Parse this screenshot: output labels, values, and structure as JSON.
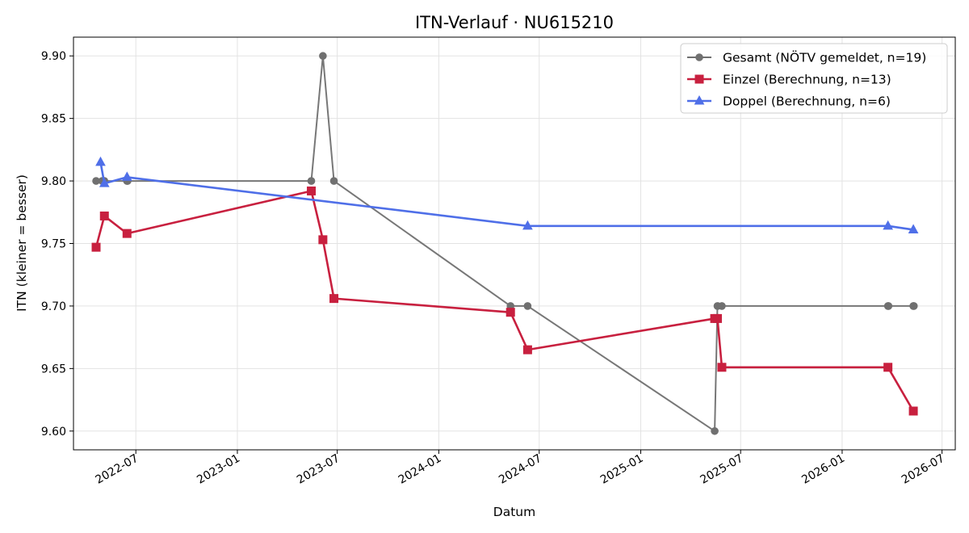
{
  "chart_data": {
    "type": "line",
    "title": "ITN-Verlauf · NU615210",
    "xlabel": "Datum",
    "ylabel": "ITN  (kleiner = besser)",
    "x_ticks": [
      "2022-07",
      "2023-01",
      "2023-07",
      "2024-01",
      "2024-07",
      "2025-01",
      "2025-07",
      "2026-01",
      "2026-07"
    ],
    "y_ticks": [
      "9.60",
      "9.65",
      "9.70",
      "9.75",
      "9.80",
      "9.85",
      "9.90"
    ],
    "xlim": [
      "2022-03-10",
      "2026-07-25"
    ],
    "ylim": [
      9.585,
      9.915
    ],
    "grid": true,
    "legend_position": "top-right",
    "series": [
      {
        "name": "Gesamt (NÖTV gemeldet, n=19)",
        "color": "#707070",
        "marker": "circle",
        "points": [
          {
            "x": "2022-04-20",
            "y": 9.8
          },
          {
            "x": "2022-05-01",
            "y": 9.8
          },
          {
            "x": "2022-05-05",
            "y": 9.8
          },
          {
            "x": "2022-06-15",
            "y": 9.8
          },
          {
            "x": "2022-06-16",
            "y": 9.8
          },
          {
            "x": "2023-05-15",
            "y": 9.8
          },
          {
            "x": "2023-06-05",
            "y": 9.9
          },
          {
            "x": "2023-06-25",
            "y": 9.8
          },
          {
            "x": "2024-05-10",
            "y": 9.7
          },
          {
            "x": "2024-06-10",
            "y": 9.7
          },
          {
            "x": "2025-05-15",
            "y": 9.6
          },
          {
            "x": "2025-05-20",
            "y": 9.7
          },
          {
            "x": "2025-05-28",
            "y": 9.7
          },
          {
            "x": "2026-03-25",
            "y": 9.7
          },
          {
            "x": "2026-03-26",
            "y": 9.7
          },
          {
            "x": "2026-05-10",
            "y": 9.7
          },
          {
            "x": "2026-05-11",
            "y": 9.7
          }
        ]
      },
      {
        "name": "Einzel (Berechnung, n=13)",
        "color": "#c8203f",
        "marker": "square",
        "points": [
          {
            "x": "2022-04-20",
            "y": 9.747
          },
          {
            "x": "2022-05-05",
            "y": 9.772
          },
          {
            "x": "2022-06-15",
            "y": 9.758
          },
          {
            "x": "2023-05-15",
            "y": 9.792
          },
          {
            "x": "2023-06-05",
            "y": 9.753
          },
          {
            "x": "2023-06-25",
            "y": 9.706
          },
          {
            "x": "2024-05-10",
            "y": 9.695
          },
          {
            "x": "2024-06-10",
            "y": 9.665
          },
          {
            "x": "2025-05-15",
            "y": 9.69
          },
          {
            "x": "2025-05-20",
            "y": 9.69
          },
          {
            "x": "2025-05-28",
            "y": 9.651
          },
          {
            "x": "2026-03-25",
            "y": 9.651
          },
          {
            "x": "2026-05-10",
            "y": 9.616
          }
        ]
      },
      {
        "name": "Doppel (Berechnung, n=6)",
        "color": "#4f6fe8",
        "marker": "triangle",
        "points": [
          {
            "x": "2022-04-28",
            "y": 9.815
          },
          {
            "x": "2022-05-05",
            "y": 9.798
          },
          {
            "x": "2022-06-15",
            "y": 9.803
          },
          {
            "x": "2024-06-10",
            "y": 9.764
          },
          {
            "x": "2026-03-25",
            "y": 9.764
          },
          {
            "x": "2026-05-10",
            "y": 9.761
          }
        ]
      }
    ]
  }
}
